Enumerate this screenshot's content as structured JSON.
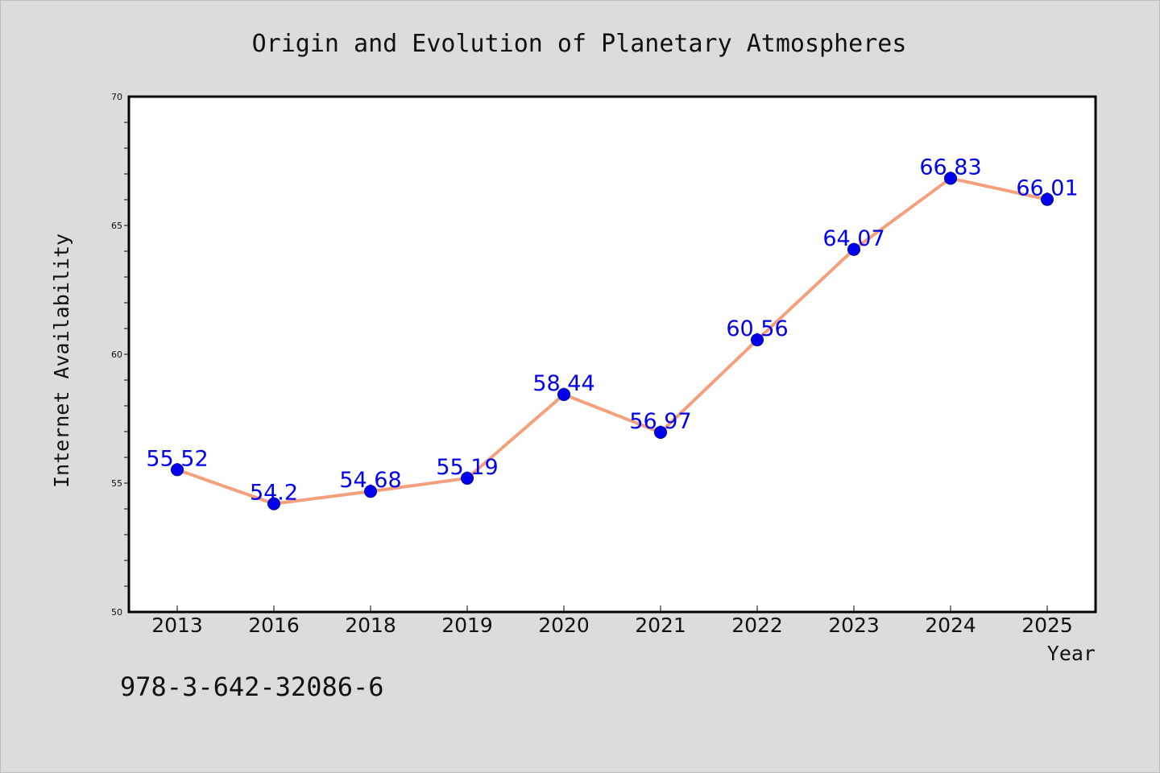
{
  "chart_data": {
    "type": "line",
    "title": "Origin and Evolution of Planetary Atmospheres",
    "xlabel": "Year",
    "ylabel": "Internet Availability",
    "categories": [
      "2013",
      "2016",
      "2018",
      "2019",
      "2020",
      "2021",
      "2022",
      "2023",
      "2024",
      "2025"
    ],
    "series": [
      {
        "values": [
          55.52,
          54.2,
          54.68,
          55.19,
          58.44,
          56.97,
          60.56,
          64.07,
          66.83,
          66.01
        ],
        "data_labels": [
          "55.52",
          "54.2",
          "54.68",
          "55.19",
          "58.44",
          "56.97",
          "60.56",
          "64.07",
          "66.83",
          "66.01"
        ],
        "line_color": "#f4a07c",
        "marker_color": "#0000ee",
        "label_color": "#0000ee"
      }
    ],
    "ylim": [
      50,
      70
    ],
    "yticks": [
      "50",
      "55",
      "60",
      "65",
      "70"
    ],
    "grid": false,
    "legend": "none",
    "background_color": "#dcdcdc",
    "plot_background_color": "#ffffff"
  },
  "annotation": "978-3-642-32086-6"
}
